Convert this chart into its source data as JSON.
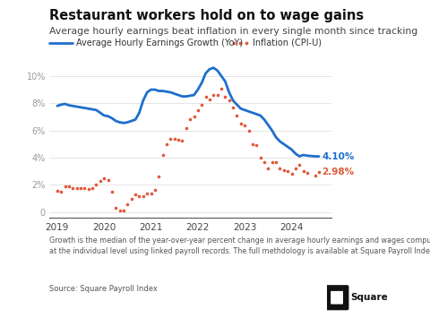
{
  "title": "Restaurant workers hold on to wage gains",
  "subtitle": "Average hourly earnings beat inflation in every single month since tracking",
  "footnote": "Growth is the median of the year-over-year percent change in average hourly earnings and wages computed\nat the individual level using linked payroll records. The full methdology is available at Square Payroll Index.",
  "source": "Source: Square Payroll Index",
  "legend_earnings": "Average Hourly Earnings Growth (YoY)",
  "legend_inflation": "Inflation (CPI-U)",
  "earnings_color": "#1e6fcc",
  "inflation_color": "#e05a3a",
  "earnings_label": "4.10%",
  "inflation_label": "2.98%",
  "yticks": [
    0,
    2,
    4,
    6,
    8,
    10
  ],
  "ylim": [
    -0.4,
    11.5
  ],
  "background": "#ffffff",
  "earnings_x": [
    2019.0,
    2019.083,
    2019.167,
    2019.25,
    2019.333,
    2019.417,
    2019.5,
    2019.583,
    2019.667,
    2019.75,
    2019.833,
    2019.917,
    2020.0,
    2020.083,
    2020.167,
    2020.25,
    2020.333,
    2020.417,
    2020.5,
    2020.583,
    2020.667,
    2020.75,
    2020.833,
    2020.917,
    2021.0,
    2021.083,
    2021.167,
    2021.25,
    2021.333,
    2021.417,
    2021.5,
    2021.583,
    2021.667,
    2021.75,
    2021.833,
    2021.917,
    2022.0,
    2022.083,
    2022.167,
    2022.25,
    2022.333,
    2022.417,
    2022.5,
    2022.583,
    2022.667,
    2022.75,
    2022.833,
    2022.917,
    2023.0,
    2023.083,
    2023.167,
    2023.25,
    2023.333,
    2023.417,
    2023.5,
    2023.583,
    2023.667,
    2023.75,
    2023.833,
    2023.917,
    2024.0,
    2024.083,
    2024.167,
    2024.25,
    2024.333,
    2024.5,
    2024.583
  ],
  "earnings_y": [
    7.8,
    7.9,
    7.95,
    7.85,
    7.8,
    7.75,
    7.7,
    7.65,
    7.6,
    7.55,
    7.5,
    7.3,
    7.1,
    7.05,
    6.9,
    6.7,
    6.6,
    6.55,
    6.6,
    6.7,
    6.8,
    7.3,
    8.2,
    8.8,
    9.0,
    9.0,
    8.9,
    8.9,
    8.85,
    8.8,
    8.7,
    8.6,
    8.5,
    8.5,
    8.55,
    8.6,
    9.0,
    9.5,
    10.2,
    10.5,
    10.6,
    10.4,
    10.0,
    9.6,
    8.8,
    8.2,
    7.9,
    7.6,
    7.5,
    7.4,
    7.3,
    7.2,
    7.1,
    6.8,
    6.4,
    6.0,
    5.5,
    5.2,
    5.0,
    4.8,
    4.6,
    4.3,
    4.1,
    4.2,
    4.15,
    4.1,
    4.1
  ],
  "inflation_x": [
    2019.0,
    2019.083,
    2019.167,
    2019.25,
    2019.333,
    2019.417,
    2019.5,
    2019.583,
    2019.667,
    2019.75,
    2019.833,
    2019.917,
    2020.0,
    2020.083,
    2020.167,
    2020.25,
    2020.333,
    2020.417,
    2020.5,
    2020.583,
    2020.667,
    2020.75,
    2020.833,
    2020.917,
    2021.0,
    2021.083,
    2021.167,
    2021.25,
    2021.333,
    2021.417,
    2021.5,
    2021.583,
    2021.667,
    2021.75,
    2021.833,
    2021.917,
    2022.0,
    2022.083,
    2022.167,
    2022.25,
    2022.333,
    2022.417,
    2022.5,
    2022.583,
    2022.667,
    2022.75,
    2022.833,
    2022.917,
    2023.0,
    2023.083,
    2023.167,
    2023.25,
    2023.333,
    2023.417,
    2023.5,
    2023.583,
    2023.667,
    2023.75,
    2023.833,
    2023.917,
    2024.0,
    2024.083,
    2024.167,
    2024.25,
    2024.333,
    2024.5,
    2024.583
  ],
  "inflation_y": [
    1.55,
    1.52,
    1.9,
    1.9,
    1.8,
    1.75,
    1.8,
    1.75,
    1.7,
    1.75,
    2.05,
    2.3,
    2.5,
    2.35,
    1.5,
    0.3,
    0.1,
    0.1,
    0.6,
    1.0,
    1.3,
    1.2,
    1.2,
    1.4,
    1.4,
    1.65,
    2.6,
    4.2,
    5.0,
    5.4,
    5.4,
    5.3,
    5.25,
    6.2,
    6.8,
    7.0,
    7.5,
    7.9,
    8.5,
    8.3,
    8.6,
    8.6,
    9.1,
    8.5,
    8.2,
    7.7,
    7.1,
    6.5,
    6.4,
    6.0,
    5.0,
    4.9,
    4.0,
    3.65,
    3.2,
    3.7,
    3.67,
    3.2,
    3.1,
    3.05,
    2.8,
    3.2,
    3.5,
    3.0,
    2.9,
    2.7,
    2.98
  ]
}
